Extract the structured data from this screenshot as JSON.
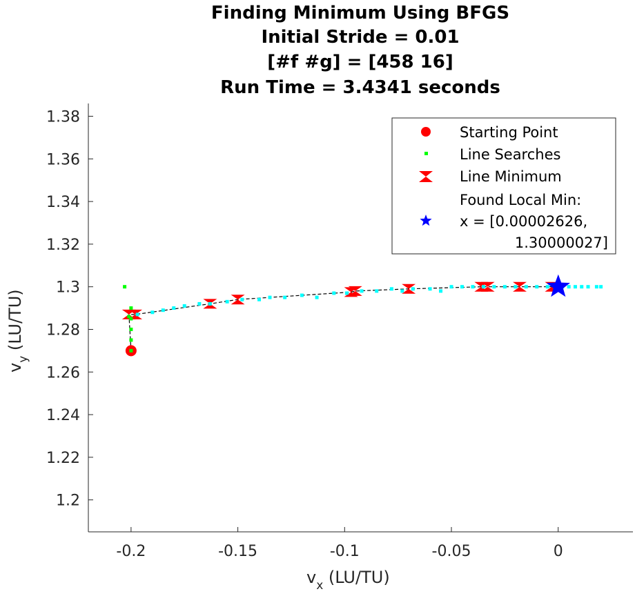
{
  "chart_data": {
    "type": "scatter",
    "title": [
      "Finding Minimum Using BFGS",
      "Initial Stride = 0.01",
      "[#f #g] = [458 16]",
      "Run Time = 3.4341 seconds"
    ],
    "xlabel": "v",
    "xlabel_sub": "x",
    "xlabel_unit": " (LU/TU)",
    "ylabel": "v",
    "ylabel_sub": "y",
    "ylabel_unit": " (LU/TU)",
    "xlim": [
      -0.22,
      0.035
    ],
    "ylim": [
      1.185,
      1.386
    ],
    "xticks": [
      -0.2,
      -0.15,
      -0.1,
      -0.05,
      0
    ],
    "xtick_labels": [
      "-0.2",
      "-0.15",
      "-0.1",
      "-0.05",
      "0"
    ],
    "yticks": [
      1.2,
      1.22,
      1.24,
      1.26,
      1.28,
      1.3,
      1.32,
      1.34,
      1.36,
      1.38
    ],
    "ytick_labels": [
      "1.2",
      "1.22",
      "1.24",
      "1.26",
      "1.28",
      "1.3",
      "1.32",
      "1.34",
      "1.36",
      "1.38"
    ],
    "grid": false,
    "legend_position": "top-right",
    "series": [
      {
        "name": "Starting Point",
        "marker": "circle",
        "color": "#ff0000",
        "x": [
          -0.2
        ],
        "y": [
          1.27
        ]
      },
      {
        "name": "Line Searches",
        "marker": "dot",
        "color": "#00ff00",
        "x": [
          -0.2,
          -0.2,
          -0.2,
          -0.2,
          -0.2,
          -0.203,
          -0.201
        ],
        "y": [
          1.27,
          1.275,
          1.28,
          1.285,
          1.29,
          1.3,
          1.286
        ]
      },
      {
        "name": "Line Searches (cyan)",
        "marker": "dot",
        "color": "#00ffff",
        "x": [
          -0.197,
          -0.19,
          -0.185,
          -0.18,
          -0.175,
          -0.168,
          -0.163,
          -0.155,
          -0.148,
          -0.14,
          -0.135,
          -0.128,
          -0.12,
          -0.113,
          -0.105,
          -0.099,
          -0.092,
          -0.085,
          -0.078,
          -0.073,
          -0.068,
          -0.06,
          -0.055,
          -0.05,
          -0.045,
          -0.04,
          -0.035,
          -0.03,
          -0.025,
          -0.02,
          -0.015,
          -0.01,
          -0.005,
          0.002,
          0.005,
          0.008,
          0.011,
          0.014,
          0.018,
          0.02
        ],
        "y": [
          1.287,
          1.288,
          1.289,
          1.29,
          1.291,
          1.292,
          1.292,
          1.293,
          1.294,
          1.294,
          1.295,
          1.295,
          1.296,
          1.295,
          1.297,
          1.297,
          1.298,
          1.298,
          1.299,
          1.298,
          1.299,
          1.299,
          1.298,
          1.3,
          1.3,
          1.3,
          1.3,
          1.3,
          1.3,
          1.3,
          1.3,
          1.3,
          1.3,
          1.3,
          1.3,
          1.3,
          1.3,
          1.3,
          1.3,
          1.3
        ]
      },
      {
        "name": "Line Minimum",
        "marker": "bowtie",
        "color": "#ff0000",
        "x": [
          -0.201,
          -0.198,
          -0.163,
          -0.15,
          -0.097,
          -0.095,
          -0.07,
          -0.036,
          -0.033,
          -0.018,
          -0.003
        ],
        "y": [
          1.287,
          1.287,
          1.292,
          1.294,
          1.2975,
          1.298,
          1.299,
          1.3,
          1.3,
          1.3,
          1.3
        ]
      },
      {
        "name": "Path",
        "marker": "dashed-line",
        "color": "#000000",
        "x": [
          -0.2,
          -0.201,
          -0.198,
          -0.163,
          -0.15,
          -0.097,
          -0.095,
          -0.07,
          -0.036,
          -0.033,
          -0.018,
          -0.003,
          0
        ],
        "y": [
          1.27,
          1.287,
          1.287,
          1.292,
          1.294,
          1.2975,
          1.298,
          1.299,
          1.3,
          1.3,
          1.3,
          1.3,
          1.3
        ]
      },
      {
        "name": "Found Local Min",
        "marker": "star",
        "color": "#0000ff",
        "x": [
          2.626e-05
        ],
        "y": [
          1.30000027
        ]
      }
    ],
    "legend": {
      "entries": [
        "Starting Point",
        "Line Searches",
        "Line Minimum",
        "Found Local Min:"
      ],
      "min_line2": "x = [0.00002626,",
      "min_line3": "1.30000027]"
    }
  }
}
